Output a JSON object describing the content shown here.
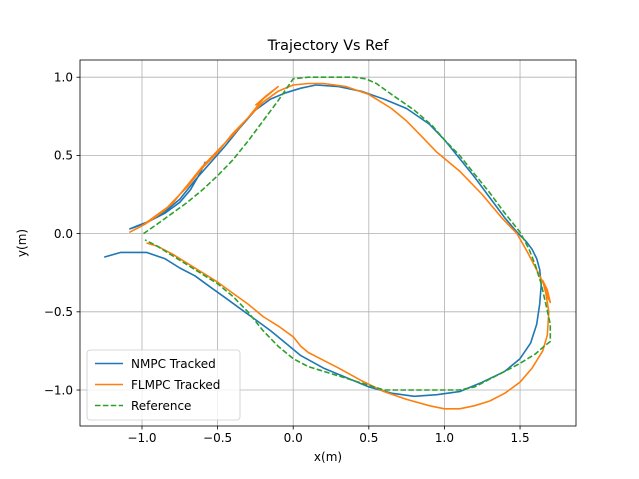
{
  "chart_data": {
    "type": "line",
    "title": "Trajectory Vs Ref",
    "xlabel": "x(m)",
    "ylabel": "y(m)",
    "xlim": [
      -1.41,
      1.87
    ],
    "ylim": [
      -1.23,
      1.11
    ],
    "xticks": [
      -1.0,
      -0.5,
      0.0,
      0.5,
      1.0,
      1.5
    ],
    "yticks": [
      -1.0,
      -0.5,
      0.0,
      0.5,
      1.0
    ],
    "xtick_labels": [
      "−1.0",
      "−0.5",
      "0.0",
      "0.5",
      "1.0",
      "1.5"
    ],
    "ytick_labels": [
      "−1.0",
      "−0.5",
      "0.0",
      "0.5",
      "1.0"
    ],
    "grid": true,
    "legend_position": "lower-left",
    "series": [
      {
        "name": "NMPC Tracked",
        "color": "#1f77b4",
        "style": "solid",
        "points": [
          [
            -0.58,
            0.46
          ],
          [
            -0.62,
            0.38
          ],
          [
            -0.68,
            0.28
          ],
          [
            -0.75,
            0.2
          ],
          [
            -0.85,
            0.13
          ],
          [
            -0.95,
            0.08
          ],
          [
            -1.03,
            0.05
          ],
          [
            -1.08,
            0.03
          ],
          [
            -1.05,
            0.04
          ],
          [
            -0.95,
            0.08
          ],
          [
            -0.85,
            0.14
          ],
          [
            -0.75,
            0.22
          ],
          [
            -0.65,
            0.34
          ],
          [
            -0.55,
            0.45
          ],
          [
            -0.45,
            0.56
          ],
          [
            -0.35,
            0.68
          ],
          [
            -0.25,
            0.79
          ],
          [
            -0.15,
            0.86
          ],
          [
            -0.05,
            0.9
          ],
          [
            0.05,
            0.93
          ],
          [
            0.15,
            0.95
          ],
          [
            0.3,
            0.94
          ],
          [
            0.45,
            0.91
          ],
          [
            0.6,
            0.86
          ],
          [
            0.75,
            0.8
          ],
          [
            0.9,
            0.7
          ],
          [
            1.0,
            0.6
          ],
          [
            1.1,
            0.48
          ],
          [
            1.2,
            0.36
          ],
          [
            1.3,
            0.23
          ],
          [
            1.4,
            0.1
          ],
          [
            1.48,
            0.01
          ],
          [
            1.54,
            -0.05
          ],
          [
            1.58,
            -0.1
          ],
          [
            1.61,
            -0.16
          ],
          [
            1.63,
            -0.23
          ],
          [
            1.64,
            -0.33
          ],
          [
            1.63,
            -0.45
          ],
          [
            1.61,
            -0.58
          ],
          [
            1.57,
            -0.7
          ],
          [
            1.5,
            -0.8
          ],
          [
            1.4,
            -0.88
          ],
          [
            1.25,
            -0.95
          ],
          [
            1.1,
            -1.01
          ],
          [
            0.95,
            -1.03
          ],
          [
            0.8,
            -1.04
          ],
          [
            0.65,
            -1.02
          ],
          [
            0.5,
            -0.98
          ],
          [
            0.35,
            -0.92
          ],
          [
            0.2,
            -0.86
          ],
          [
            0.05,
            -0.78
          ],
          [
            -0.05,
            -0.7
          ],
          [
            -0.15,
            -0.62
          ],
          [
            -0.25,
            -0.55
          ],
          [
            -0.35,
            -0.48
          ],
          [
            -0.45,
            -0.41
          ],
          [
            -0.55,
            -0.34
          ],
          [
            -0.65,
            -0.27
          ],
          [
            -0.75,
            -0.22
          ],
          [
            -0.85,
            -0.16
          ],
          [
            -0.97,
            -0.12
          ],
          [
            -1.05,
            -0.12
          ],
          [
            -1.14,
            -0.12
          ],
          [
            -1.25,
            -0.15
          ]
        ]
      },
      {
        "name": "FLMPC Tracked",
        "color": "#ff7f0e",
        "style": "solid",
        "points": [
          [
            -0.25,
            0.82
          ],
          [
            -0.18,
            0.88
          ],
          [
            -0.1,
            0.94
          ],
          [
            -0.2,
            0.86
          ],
          [
            -0.3,
            0.74
          ],
          [
            -0.4,
            0.64
          ],
          [
            -0.5,
            0.52
          ],
          [
            -0.6,
            0.42
          ],
          [
            -0.7,
            0.3
          ],
          [
            -0.78,
            0.22
          ],
          [
            -0.85,
            0.15
          ],
          [
            -0.92,
            0.1
          ],
          [
            -0.98,
            0.06
          ],
          [
            -1.04,
            0.03
          ],
          [
            -1.08,
            0.01
          ],
          [
            -1.0,
            0.05
          ],
          [
            -0.9,
            0.12
          ],
          [
            -0.8,
            0.19
          ],
          [
            -0.7,
            0.31
          ],
          [
            -0.6,
            0.43
          ],
          [
            -0.5,
            0.53
          ],
          [
            -0.4,
            0.63
          ],
          [
            -0.3,
            0.74
          ],
          [
            -0.2,
            0.84
          ],
          [
            -0.1,
            0.91
          ],
          [
            0.0,
            0.95
          ],
          [
            0.1,
            0.96
          ],
          [
            0.2,
            0.96
          ],
          [
            0.35,
            0.94
          ],
          [
            0.5,
            0.89
          ],
          [
            0.65,
            0.8
          ],
          [
            0.75,
            0.72
          ],
          [
            0.85,
            0.62
          ],
          [
            0.95,
            0.52
          ],
          [
            1.1,
            0.4
          ],
          [
            1.25,
            0.25
          ],
          [
            1.38,
            0.1
          ],
          [
            1.48,
            0.0
          ],
          [
            1.55,
            -0.12
          ],
          [
            1.62,
            -0.25
          ],
          [
            1.66,
            -0.33
          ],
          [
            1.68,
            -0.4
          ],
          [
            1.7,
            -0.44
          ],
          [
            1.68,
            -0.36
          ],
          [
            1.65,
            -0.3
          ],
          [
            1.67,
            -0.38
          ],
          [
            1.69,
            -0.5
          ],
          [
            1.68,
            -0.65
          ],
          [
            1.65,
            -0.75
          ],
          [
            1.58,
            -0.86
          ],
          [
            1.5,
            -0.95
          ],
          [
            1.4,
            -1.02
          ],
          [
            1.3,
            -1.07
          ],
          [
            1.2,
            -1.1
          ],
          [
            1.1,
            -1.12
          ],
          [
            1.0,
            -1.12
          ],
          [
            0.9,
            -1.1
          ],
          [
            0.75,
            -1.06
          ],
          [
            0.6,
            -1.01
          ],
          [
            0.45,
            -0.94
          ],
          [
            0.3,
            -0.86
          ],
          [
            0.2,
            -0.81
          ],
          [
            0.1,
            -0.76
          ],
          [
            0.05,
            -0.72
          ],
          [
            0.0,
            -0.66
          ],
          [
            -0.1,
            -0.59
          ],
          [
            -0.2,
            -0.53
          ],
          [
            -0.3,
            -0.45
          ],
          [
            -0.4,
            -0.38
          ],
          [
            -0.5,
            -0.31
          ],
          [
            -0.6,
            -0.25
          ],
          [
            -0.7,
            -0.19
          ],
          [
            -0.8,
            -0.13
          ],
          [
            -0.9,
            -0.08
          ],
          [
            -0.97,
            -0.06
          ]
        ]
      },
      {
        "name": "Reference",
        "color": "#2ca02c",
        "style": "dashed",
        "points": [
          [
            -0.99,
            0.0
          ],
          [
            -0.9,
            0.06
          ],
          [
            -0.8,
            0.13
          ],
          [
            -0.7,
            0.2
          ],
          [
            -0.6,
            0.28
          ],
          [
            -0.5,
            0.37
          ],
          [
            -0.4,
            0.47
          ],
          [
            -0.3,
            0.59
          ],
          [
            -0.2,
            0.72
          ],
          [
            -0.1,
            0.85
          ],
          [
            0.0,
            0.99
          ],
          [
            0.1,
            1.0
          ],
          [
            0.25,
            1.0
          ],
          [
            0.4,
            1.0
          ],
          [
            0.48,
            0.99
          ],
          [
            0.55,
            0.96
          ],
          [
            0.65,
            0.89
          ],
          [
            0.8,
            0.79
          ],
          [
            0.92,
            0.69
          ],
          [
            1.0,
            0.6
          ],
          [
            1.1,
            0.5
          ],
          [
            1.2,
            0.38
          ],
          [
            1.3,
            0.26
          ],
          [
            1.4,
            0.13
          ],
          [
            1.5,
            0.01
          ],
          [
            1.56,
            -0.1
          ],
          [
            1.6,
            -0.2
          ],
          [
            1.64,
            -0.32
          ],
          [
            1.67,
            -0.45
          ],
          [
            1.7,
            -0.58
          ],
          [
            1.7,
            -0.69
          ],
          [
            1.66,
            -0.72
          ],
          [
            1.6,
            -0.77
          ],
          [
            1.5,
            -0.83
          ],
          [
            1.4,
            -0.88
          ],
          [
            1.3,
            -0.93
          ],
          [
            1.2,
            -0.98
          ],
          [
            1.1,
            -1.0
          ],
          [
            1.0,
            -1.0
          ],
          [
            0.8,
            -1.0
          ],
          [
            0.6,
            -1.0
          ],
          [
            0.5,
            -0.97
          ],
          [
            0.4,
            -0.94
          ],
          [
            0.3,
            -0.91
          ],
          [
            0.2,
            -0.88
          ],
          [
            0.1,
            -0.85
          ],
          [
            0.0,
            -0.8
          ],
          [
            -0.1,
            -0.72
          ],
          [
            -0.2,
            -0.62
          ],
          [
            -0.3,
            -0.5
          ],
          [
            -0.4,
            -0.4
          ],
          [
            -0.5,
            -0.32
          ],
          [
            -0.6,
            -0.26
          ],
          [
            -0.7,
            -0.2
          ],
          [
            -0.8,
            -0.14
          ],
          [
            -0.9,
            -0.08
          ],
          [
            -0.98,
            -0.04
          ]
        ]
      }
    ]
  }
}
